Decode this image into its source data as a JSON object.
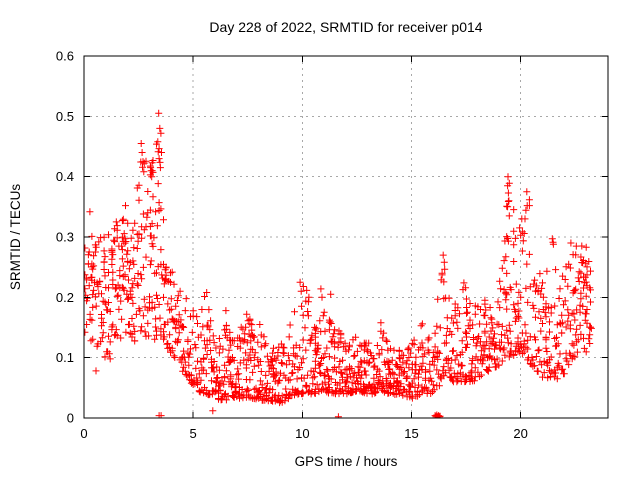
{
  "chart_data": {
    "type": "scatter",
    "title": "Day 228 of 2022, SRMTID for receiver p014",
    "xlabel": "GPS time / hours",
    "ylabel": "SRMTID / TECUs",
    "xlim": [
      0,
      24
    ],
    "ylim": [
      0,
      0.6
    ],
    "xticks": [
      0,
      5,
      10,
      15,
      20
    ],
    "xtick_labels": [
      "0",
      "5",
      "10",
      "15",
      "20"
    ],
    "yticks": [
      0,
      0.1,
      0.2,
      0.3,
      0.4,
      0.5,
      0.6
    ],
    "ytick_labels": [
      "0",
      "0.1",
      "0.2",
      "0.3",
      "0.4",
      "0.5",
      "0.6"
    ],
    "grid": "dotted",
    "legend": "none",
    "marker": "plus",
    "marker_color": "#ff0000",
    "grid_color": "#a8a8a8",
    "axis_color": "#000000",
    "background": "#ffffff",
    "series_name": "SRMTID",
    "x_start": 0.0,
    "x_end": 23.35,
    "seed": 11,
    "density_profile": [
      [
        0.0,
        0.13,
        0.31,
        6,
        1.0
      ],
      [
        0.5,
        0.11,
        0.3,
        6,
        1.1
      ],
      [
        1.0,
        0.1,
        0.3,
        6,
        1.1
      ],
      [
        1.5,
        0.12,
        0.33,
        7,
        1.0
      ],
      [
        1.9,
        0.14,
        0.35,
        8,
        0.9
      ],
      [
        2.3,
        0.12,
        0.34,
        6,
        1.1
      ],
      [
        2.65,
        0.14,
        0.46,
        7,
        1.2
      ],
      [
        3.0,
        0.13,
        0.42,
        6,
        1.3
      ],
      [
        3.45,
        0.13,
        0.5,
        8,
        1.2
      ],
      [
        3.8,
        0.11,
        0.28,
        7,
        1.3
      ],
      [
        4.2,
        0.09,
        0.22,
        6,
        1.3
      ],
      [
        4.7,
        0.07,
        0.2,
        6,
        1.5
      ],
      [
        5.2,
        0.045,
        0.17,
        7,
        1.8
      ],
      [
        5.6,
        0.04,
        0.21,
        7,
        2.0
      ],
      [
        6.0,
        0.03,
        0.14,
        7,
        1.8
      ],
      [
        6.5,
        0.03,
        0.16,
        7,
        2.0
      ],
      [
        7.0,
        0.03,
        0.13,
        7,
        1.8
      ],
      [
        7.5,
        0.035,
        0.175,
        7,
        2.0
      ],
      [
        8.0,
        0.03,
        0.15,
        7,
        2.0
      ],
      [
        8.5,
        0.028,
        0.12,
        7,
        1.8
      ],
      [
        9.0,
        0.025,
        0.12,
        7,
        1.8
      ],
      [
        9.5,
        0.035,
        0.16,
        6,
        1.9
      ],
      [
        9.9,
        0.04,
        0.225,
        6,
        2.2
      ],
      [
        10.2,
        0.04,
        0.21,
        6,
        2.2
      ],
      [
        10.5,
        0.04,
        0.15,
        7,
        1.9
      ],
      [
        10.9,
        0.045,
        0.215,
        6,
        2.2
      ],
      [
        11.3,
        0.04,
        0.165,
        6,
        2.0
      ],
      [
        11.7,
        0.04,
        0.15,
        6,
        1.9
      ],
      [
        12.1,
        0.04,
        0.13,
        7,
        1.8
      ],
      [
        12.5,
        0.045,
        0.135,
        7,
        1.8
      ],
      [
        13.0,
        0.04,
        0.125,
        7,
        1.8
      ],
      [
        13.6,
        0.04,
        0.16,
        7,
        1.9
      ],
      [
        14.0,
        0.04,
        0.125,
        7,
        1.8
      ],
      [
        14.5,
        0.038,
        0.115,
        7,
        1.7
      ],
      [
        15.0,
        0.032,
        0.125,
        7,
        1.8
      ],
      [
        15.5,
        0.04,
        0.16,
        6,
        1.9
      ],
      [
        15.9,
        0.04,
        0.135,
        6,
        1.8
      ],
      [
        16.2,
        0.05,
        0.19,
        5,
        1.7
      ],
      [
        16.5,
        0.07,
        0.27,
        6,
        1.7
      ],
      [
        16.9,
        0.06,
        0.18,
        6,
        1.6
      ],
      [
        17.4,
        0.06,
        0.225,
        6,
        1.7
      ],
      [
        17.8,
        0.06,
        0.18,
        6,
        1.6
      ],
      [
        18.2,
        0.07,
        0.2,
        6,
        1.6
      ],
      [
        18.7,
        0.08,
        0.185,
        6,
        1.5
      ],
      [
        19.1,
        0.09,
        0.25,
        6,
        1.6
      ],
      [
        19.45,
        0.1,
        0.4,
        7,
        1.8
      ],
      [
        19.8,
        0.1,
        0.315,
        7,
        1.5
      ],
      [
        20.1,
        0.1,
        0.33,
        7,
        1.5
      ],
      [
        20.4,
        0.09,
        0.375,
        6,
        1.7
      ],
      [
        20.7,
        0.08,
        0.26,
        6,
        1.5
      ],
      [
        21.1,
        0.06,
        0.22,
        6,
        1.5
      ],
      [
        21.45,
        0.07,
        0.3,
        6,
        1.6
      ],
      [
        21.8,
        0.06,
        0.21,
        6,
        1.5
      ],
      [
        22.2,
        0.09,
        0.285,
        6,
        1.4
      ],
      [
        22.6,
        0.1,
        0.29,
        6,
        1.4
      ],
      [
        23.0,
        0.11,
        0.28,
        6,
        1.3
      ],
      [
        23.35,
        0.13,
        0.26,
        5,
        1.2
      ]
    ],
    "outlier_points": [
      [
        0.27,
        0.342
      ],
      [
        1.9,
        0.352
      ],
      [
        0.55,
        0.078
      ],
      [
        1.2,
        0.098
      ],
      [
        2.62,
        0.455
      ],
      [
        2.66,
        0.44
      ],
      [
        2.7,
        0.425
      ],
      [
        2.74,
        0.408
      ],
      [
        3.05,
        0.415
      ],
      [
        3.1,
        0.4
      ],
      [
        3.42,
        0.505
      ],
      [
        3.38,
        0.458
      ],
      [
        3.47,
        0.48
      ],
      [
        3.52,
        0.472
      ],
      [
        3.55,
        0.44
      ],
      [
        3.44,
        0.43
      ],
      [
        3.5,
        0.415
      ],
      [
        5.62,
        0.208
      ],
      [
        6.5,
        0.178
      ],
      [
        7.45,
        0.172
      ],
      [
        8.05,
        0.155
      ],
      [
        9.9,
        0.225
      ],
      [
        9.95,
        0.21
      ],
      [
        10.05,
        0.218
      ],
      [
        10.3,
        0.2
      ],
      [
        10.85,
        0.214
      ],
      [
        10.9,
        0.2
      ],
      [
        11.3,
        0.205
      ],
      [
        13.6,
        0.158
      ],
      [
        15.5,
        0.156
      ],
      [
        16.45,
        0.27
      ],
      [
        16.5,
        0.258
      ],
      [
        16.4,
        0.24
      ],
      [
        17.4,
        0.224
      ],
      [
        19.42,
        0.4
      ],
      [
        19.4,
        0.385
      ],
      [
        19.44,
        0.373
      ],
      [
        19.46,
        0.36
      ],
      [
        19.4,
        0.35
      ],
      [
        19.48,
        0.335
      ],
      [
        20.28,
        0.375
      ],
      [
        20.3,
        0.352
      ],
      [
        20.05,
        0.33
      ],
      [
        19.95,
        0.315
      ],
      [
        21.45,
        0.297
      ],
      [
        21.5,
        0.288
      ],
      [
        22.3,
        0.29
      ],
      [
        22.55,
        0.285
      ],
      [
        23.0,
        0.283
      ]
    ],
    "zero_points": [
      [
        3.44,
        0.004
      ],
      [
        3.53,
        0.004
      ],
      [
        5.9,
        0.012
      ],
      [
        11.65,
        0.002
      ],
      [
        16.08,
        0.004
      ],
      [
        16.12,
        0.002
      ],
      [
        16.16,
        0.005
      ],
      [
        16.2,
        0.002
      ],
      [
        16.24,
        0.004
      ],
      [
        16.28,
        0.002
      ],
      [
        16.31,
        0.003
      ]
    ]
  }
}
